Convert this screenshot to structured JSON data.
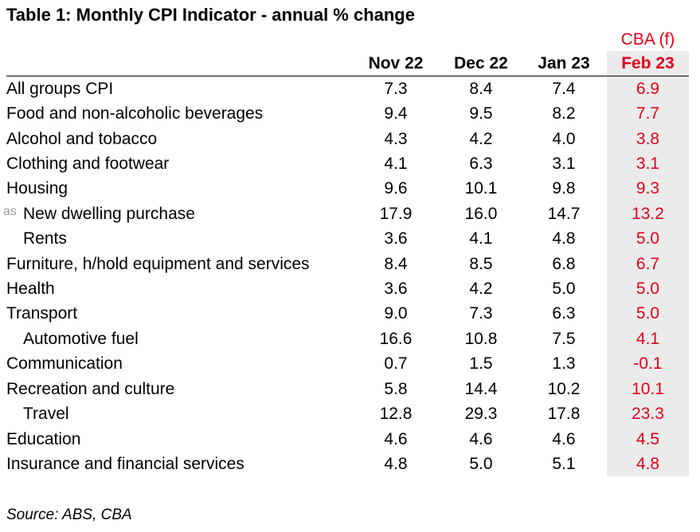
{
  "title": "Table 1: Monthly CPI Indicator - annual % change",
  "forecast_label": "CBA (f)",
  "columns": [
    "Nov 22",
    "Dec 22",
    "Jan 23",
    "Feb 23"
  ],
  "stray_prefix": "as",
  "rows": [
    {
      "label": "All groups CPI",
      "values": [
        "7.3",
        "8.4",
        "7.4",
        "6.9"
      ]
    },
    {
      "label": "Food and non-alcoholic beverages",
      "values": [
        "9.4",
        "9.5",
        "8.2",
        "7.7"
      ]
    },
    {
      "label": "Alcohol and tobacco",
      "values": [
        "4.3",
        "4.2",
        "4.0",
        "3.8"
      ]
    },
    {
      "label": "Clothing and footwear",
      "values": [
        "4.1",
        "6.3",
        "3.1",
        "3.1"
      ]
    },
    {
      "label": "Housing",
      "values": [
        "9.6",
        "10.1",
        "9.8",
        "9.3"
      ]
    },
    {
      "label": "New dwelling purchase",
      "values": [
        "17.9",
        "16.0",
        "14.7",
        "13.2"
      ]
    },
    {
      "label": "Rents",
      "values": [
        "3.6",
        "4.1",
        "4.8",
        "5.0"
      ]
    },
    {
      "label": "Furniture, h/hold equipment and services",
      "values": [
        "8.4",
        "8.5",
        "6.8",
        "6.7"
      ]
    },
    {
      "label": "Health",
      "values": [
        "3.6",
        "4.2",
        "5.0",
        "5.0"
      ]
    },
    {
      "label": "Transport",
      "values": [
        "9.0",
        "7.3",
        "6.3",
        "5.0"
      ]
    },
    {
      "label": "Automotive fuel",
      "values": [
        "16.6",
        "10.8",
        "7.5",
        "4.1"
      ]
    },
    {
      "label": "Communication",
      "values": [
        "0.7",
        "1.5",
        "1.3",
        "-0.1"
      ]
    },
    {
      "label": "Recreation and culture",
      "values": [
        "5.8",
        "14.4",
        "10.2",
        "10.1"
      ]
    },
    {
      "label": "Travel",
      "values": [
        "12.8",
        "29.3",
        "17.8",
        "23.3"
      ]
    },
    {
      "label": "Education",
      "values": [
        "4.6",
        "4.6",
        "4.6",
        "4.5"
      ]
    },
    {
      "label": "Insurance and financial services",
      "values": [
        "4.8",
        "5.0",
        "5.1",
        "4.8"
      ]
    }
  ],
  "source": "Source: ABS, CBA",
  "colors": {
    "forecast": "#e3001b",
    "forecast_bg": "#ebebeb"
  }
}
